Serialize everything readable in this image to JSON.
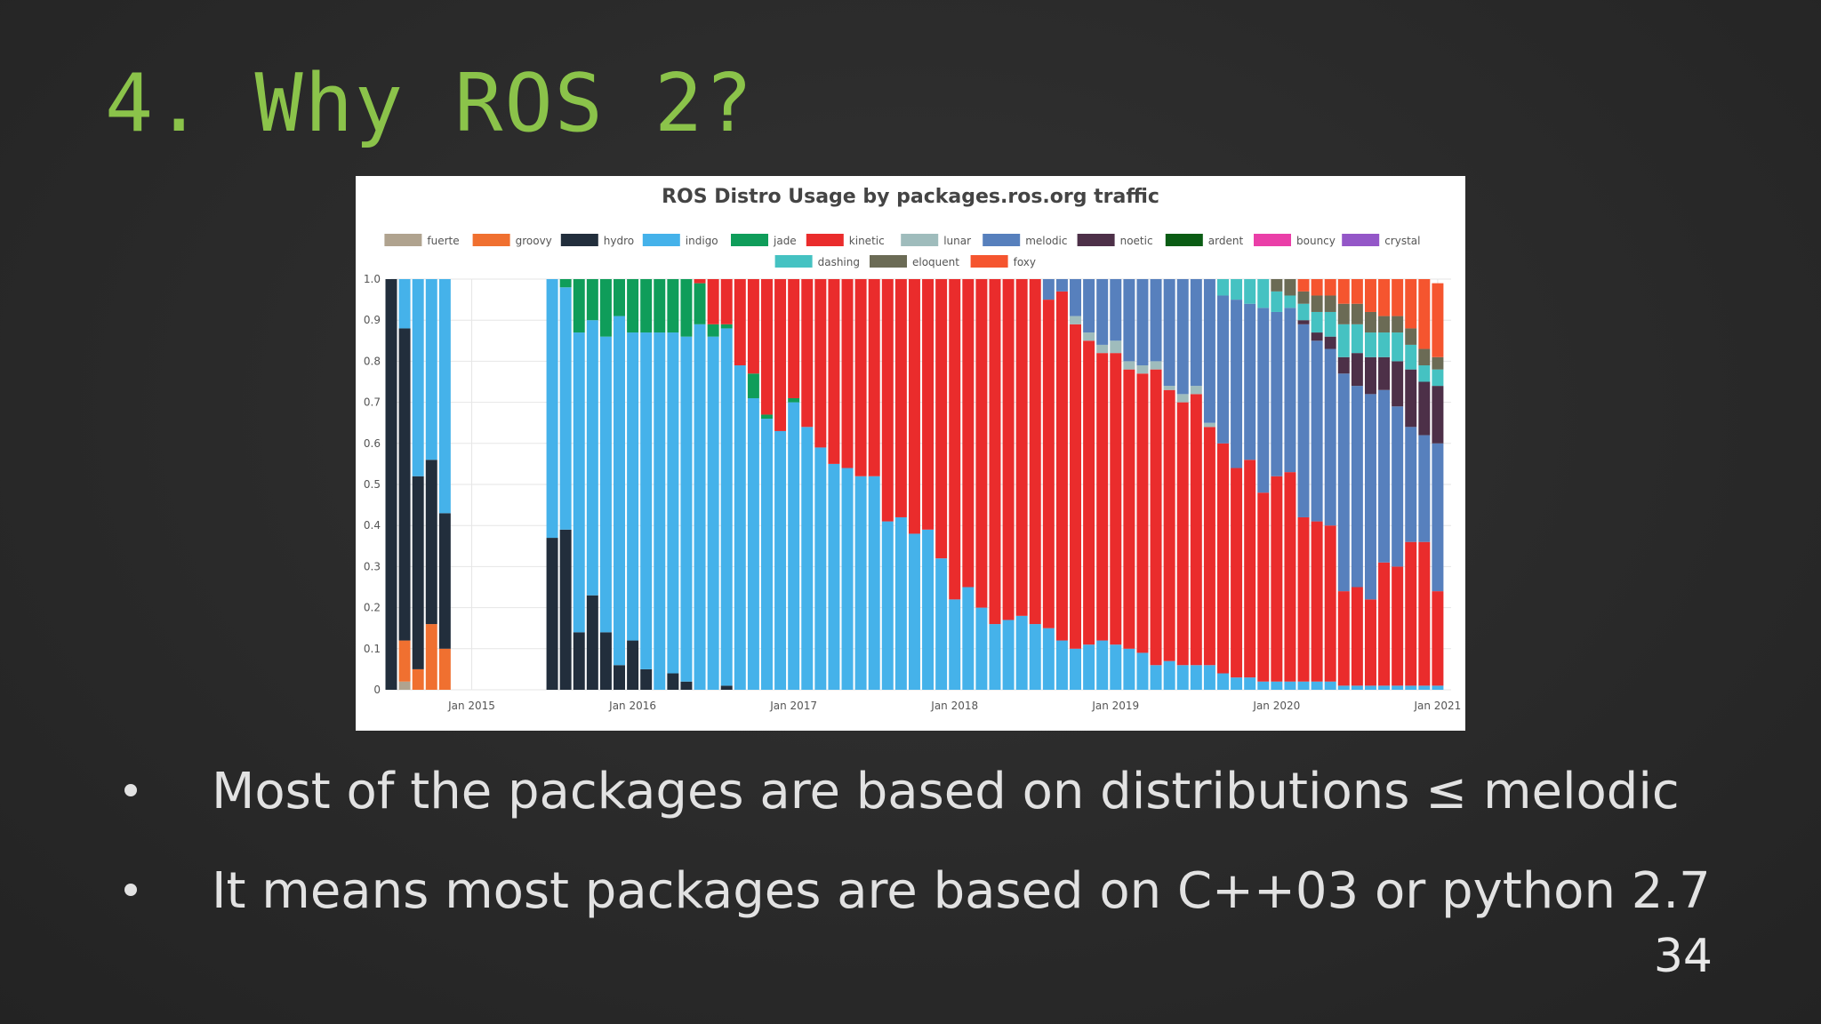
{
  "slide": {
    "title": "4. Why ROS 2?",
    "bullets": [
      "Most of the packages are based on distributions ≤ melodic",
      "It means most packages are based on C++03 or python 2.7"
    ],
    "page_number": "34"
  },
  "chart_data": {
    "type": "bar",
    "stacked": true,
    "title": "ROS Distro Usage by packages.ros.org traffic",
    "xlabel": "",
    "ylabel": "",
    "ylim": [
      0,
      1
    ],
    "grid": true,
    "legend_position": "top",
    "y_ticks": [
      "0",
      "0.1",
      "0.2",
      "0.3",
      "0.4",
      "0.5",
      "0.6",
      "0.7",
      "0.8",
      "0.9",
      "1.0"
    ],
    "x_ticks": [
      {
        "label": "Jan 2015",
        "x": "2015-01"
      },
      {
        "label": "Jan 2016",
        "x": "2016-01"
      },
      {
        "label": "Jan 2017",
        "x": "2017-01"
      },
      {
        "label": "Jan 2018",
        "x": "2018-01"
      },
      {
        "label": "Jan 2019",
        "x": "2019-01"
      },
      {
        "label": "Jan 2020",
        "x": "2020-01"
      },
      {
        "label": "Jan 2021",
        "x": "2021-01"
      }
    ],
    "x_range": [
      "2014-07",
      "2021-02"
    ],
    "months": [
      "2014-07",
      "2014-08",
      "2014-09",
      "2014-10",
      "2014-11",
      "2015-07",
      "2015-08",
      "2015-09",
      "2015-10",
      "2015-11",
      "2015-12",
      "2016-01",
      "2016-02",
      "2016-03",
      "2016-04",
      "2016-05",
      "2016-06",
      "2016-07",
      "2016-08",
      "2016-09",
      "2016-10",
      "2016-11",
      "2016-12",
      "2017-01",
      "2017-02",
      "2017-03",
      "2017-04",
      "2017-05",
      "2017-06",
      "2017-07",
      "2017-08",
      "2017-09",
      "2017-10",
      "2017-11",
      "2017-12",
      "2018-01",
      "2018-02",
      "2018-03",
      "2018-04",
      "2018-05",
      "2018-06",
      "2018-07",
      "2018-08",
      "2018-09",
      "2018-10",
      "2018-11",
      "2018-12",
      "2019-01",
      "2019-02",
      "2019-03",
      "2019-04",
      "2019-05",
      "2019-06",
      "2019-07",
      "2019-08",
      "2019-09",
      "2019-10",
      "2019-11",
      "2019-12",
      "2020-01",
      "2020-02",
      "2020-03",
      "2020-04",
      "2020-05",
      "2020-06",
      "2020-07",
      "2020-08",
      "2020-09",
      "2020-10",
      "2020-11",
      "2020-12",
      "2021-01"
    ],
    "series": [
      {
        "name": "fuerte",
        "color": "#b0a38f"
      },
      {
        "name": "groovy",
        "color": "#f07030"
      },
      {
        "name": "hydro",
        "color": "#222e3c"
      },
      {
        "name": "indigo",
        "color": "#45b2ea"
      },
      {
        "name": "jade",
        "color": "#0f9d5a"
      },
      {
        "name": "kinetic",
        "color": "#ea2c2c"
      },
      {
        "name": "lunar",
        "color": "#9fbcbc"
      },
      {
        "name": "melodic",
        "color": "#5780bd"
      },
      {
        "name": "noetic",
        "color": "#4d3048"
      },
      {
        "name": "ardent",
        "color": "#0a5c14"
      },
      {
        "name": "bouncy",
        "color": "#ea3fa8"
      },
      {
        "name": "crystal",
        "color": "#9457c8"
      },
      {
        "name": "dashing",
        "color": "#45c2c2"
      },
      {
        "name": "eloquent",
        "color": "#6b6b55"
      },
      {
        "name": "foxy",
        "color": "#f5552f"
      }
    ],
    "bars": [
      {
        "fuerte": 0.0,
        "groovy": 0.0,
        "hydro": 1.0
      },
      {
        "fuerte": 0.02,
        "groovy": 0.1,
        "hydro": 0.76,
        "indigo": 0.12
      },
      {
        "groovy": 0.05,
        "hydro": 0.47,
        "indigo": 0.48
      },
      {
        "groovy": 0.16,
        "hydro": 0.4,
        "indigo": 0.44
      },
      {
        "groovy": 0.1,
        "hydro": 0.33,
        "indigo": 0.57
      },
      {
        "hydro": 0.37,
        "indigo": 0.63
      },
      {
        "hydro": 0.39,
        "indigo": 0.59,
        "jade": 0.02
      },
      {
        "hydro": 0.14,
        "indigo": 0.73,
        "jade": 0.13
      },
      {
        "hydro": 0.23,
        "indigo": 0.67,
        "jade": 0.1
      },
      {
        "hydro": 0.14,
        "indigo": 0.72,
        "jade": 0.14
      },
      {
        "hydro": 0.06,
        "indigo": 0.85,
        "jade": 0.09
      },
      {
        "hydro": 0.12,
        "indigo": 0.75,
        "jade": 0.13
      },
      {
        "hydro": 0.05,
        "indigo": 0.82,
        "jade": 0.13
      },
      {
        "hydro": 0.0,
        "indigo": 0.87,
        "jade": 0.13
      },
      {
        "hydro": 0.04,
        "indigo": 0.83,
        "jade": 0.13
      },
      {
        "hydro": 0.02,
        "indigo": 0.84,
        "jade": 0.14
      },
      {
        "hydro": 0.0,
        "indigo": 0.89,
        "jade": 0.1,
        "kinetic": 0.01
      },
      {
        "indigo": 0.86,
        "jade": 0.03,
        "kinetic": 0.11
      },
      {
        "hydro": 0.01,
        "indigo": 0.87,
        "jade": 0.01,
        "kinetic": 0.11
      },
      {
        "indigo": 0.79,
        "jade": 0.0,
        "kinetic": 0.21
      },
      {
        "indigo": 0.71,
        "jade": 0.06,
        "kinetic": 0.23
      },
      {
        "indigo": 0.66,
        "jade": 0.01,
        "kinetic": 0.33
      },
      {
        "indigo": 0.63,
        "kinetic": 0.37
      },
      {
        "indigo": 0.7,
        "jade": 0.01,
        "kinetic": 0.29
      },
      {
        "indigo": 0.64,
        "kinetic": 0.36
      },
      {
        "indigo": 0.59,
        "kinetic": 0.41
      },
      {
        "indigo": 0.55,
        "kinetic": 0.45
      },
      {
        "indigo": 0.54,
        "kinetic": 0.46
      },
      {
        "indigo": 0.52,
        "kinetic": 0.48
      },
      {
        "indigo": 0.52,
        "kinetic": 0.48
      },
      {
        "indigo": 0.41,
        "kinetic": 0.59
      },
      {
        "indigo": 0.42,
        "kinetic": 0.58
      },
      {
        "indigo": 0.38,
        "kinetic": 0.62
      },
      {
        "indigo": 0.39,
        "kinetic": 0.61
      },
      {
        "indigo": 0.32,
        "kinetic": 0.68
      },
      {
        "indigo": 0.22,
        "kinetic": 0.78
      },
      {
        "indigo": 0.25,
        "kinetic": 0.75
      },
      {
        "indigo": 0.2,
        "kinetic": 0.8
      },
      {
        "indigo": 0.16,
        "kinetic": 0.84
      },
      {
        "indigo": 0.17,
        "kinetic": 0.83
      },
      {
        "indigo": 0.18,
        "kinetic": 0.82
      },
      {
        "indigo": 0.16,
        "kinetic": 0.84
      },
      {
        "indigo": 0.15,
        "kinetic": 0.8,
        "melodic": 0.05
      },
      {
        "indigo": 0.12,
        "kinetic": 0.85,
        "melodic": 0.03
      },
      {
        "indigo": 0.1,
        "kinetic": 0.79,
        "lunar": 0.02,
        "melodic": 0.09
      },
      {
        "indigo": 0.11,
        "kinetic": 0.74,
        "lunar": 0.02,
        "melodic": 0.13
      },
      {
        "indigo": 0.12,
        "kinetic": 0.7,
        "lunar": 0.02,
        "melodic": 0.16
      },
      {
        "indigo": 0.11,
        "kinetic": 0.71,
        "lunar": 0.03,
        "melodic": 0.15
      },
      {
        "indigo": 0.1,
        "kinetic": 0.68,
        "lunar": 0.02,
        "melodic": 0.2
      },
      {
        "indigo": 0.09,
        "kinetic": 0.68,
        "lunar": 0.02,
        "melodic": 0.21
      },
      {
        "indigo": 0.06,
        "kinetic": 0.72,
        "lunar": 0.02,
        "melodic": 0.2
      },
      {
        "indigo": 0.07,
        "kinetic": 0.66,
        "lunar": 0.01,
        "melodic": 0.26
      },
      {
        "indigo": 0.06,
        "kinetic": 0.64,
        "lunar": 0.02,
        "melodic": 0.28
      },
      {
        "indigo": 0.06,
        "kinetic": 0.66,
        "lunar": 0.02,
        "melodic": 0.26
      },
      {
        "indigo": 0.06,
        "kinetic": 0.58,
        "lunar": 0.01,
        "melodic": 0.35
      },
      {
        "indigo": 0.04,
        "kinetic": 0.56,
        "melodic": 0.36,
        "dashing": 0.04
      },
      {
        "indigo": 0.03,
        "kinetic": 0.51,
        "melodic": 0.41,
        "dashing": 0.05
      },
      {
        "indigo": 0.03,
        "kinetic": 0.53,
        "melodic": 0.38,
        "dashing": 0.06
      },
      {
        "indigo": 0.02,
        "kinetic": 0.46,
        "melodic": 0.45,
        "dashing": 0.07
      },
      {
        "indigo": 0.02,
        "kinetic": 0.5,
        "melodic": 0.4,
        "dashing": 0.05,
        "eloquent": 0.03
      },
      {
        "indigo": 0.02,
        "kinetic": 0.51,
        "melodic": 0.4,
        "dashing": 0.03,
        "eloquent": 0.04
      },
      {
        "indigo": 0.02,
        "kinetic": 0.4,
        "melodic": 0.47,
        "noetic": 0.01,
        "dashing": 0.04,
        "eloquent": 0.03,
        "foxy": 0.03
      },
      {
        "indigo": 0.02,
        "kinetic": 0.39,
        "melodic": 0.44,
        "noetic": 0.02,
        "dashing": 0.05,
        "eloquent": 0.04,
        "foxy": 0.04
      },
      {
        "indigo": 0.02,
        "kinetic": 0.38,
        "melodic": 0.43,
        "noetic": 0.03,
        "dashing": 0.06,
        "eloquent": 0.04,
        "foxy": 0.04
      },
      {
        "indigo": 0.01,
        "kinetic": 0.23,
        "melodic": 0.53,
        "noetic": 0.04,
        "dashing": 0.08,
        "eloquent": 0.05,
        "foxy": 0.06
      },
      {
        "indigo": 0.01,
        "kinetic": 0.24,
        "melodic": 0.49,
        "noetic": 0.08,
        "dashing": 0.07,
        "eloquent": 0.05,
        "foxy": 0.06
      },
      {
        "indigo": 0.01,
        "kinetic": 0.21,
        "melodic": 0.5,
        "noetic": 0.09,
        "dashing": 0.06,
        "eloquent": 0.05,
        "foxy": 0.08
      },
      {
        "indigo": 0.01,
        "kinetic": 0.3,
        "melodic": 0.42,
        "noetic": 0.08,
        "dashing": 0.06,
        "eloquent": 0.04,
        "foxy": 0.09
      },
      {
        "indigo": 0.01,
        "kinetic": 0.29,
        "melodic": 0.39,
        "noetic": 0.11,
        "dashing": 0.07,
        "eloquent": 0.04,
        "foxy": 0.09
      },
      {
        "indigo": 0.01,
        "kinetic": 0.35,
        "melodic": 0.28,
        "noetic": 0.14,
        "dashing": 0.06,
        "eloquent": 0.04,
        "foxy": 0.12
      },
      {
        "indigo": 0.01,
        "kinetic": 0.35,
        "melodic": 0.26,
        "noetic": 0.13,
        "dashing": 0.04,
        "eloquent": 0.04,
        "foxy": 0.17
      },
      {
        "indigo": 0.01,
        "kinetic": 0.23,
        "melodic": 0.36,
        "noetic": 0.14,
        "dashing": 0.04,
        "eloquent": 0.03,
        "foxy": 0.18
      }
    ]
  }
}
